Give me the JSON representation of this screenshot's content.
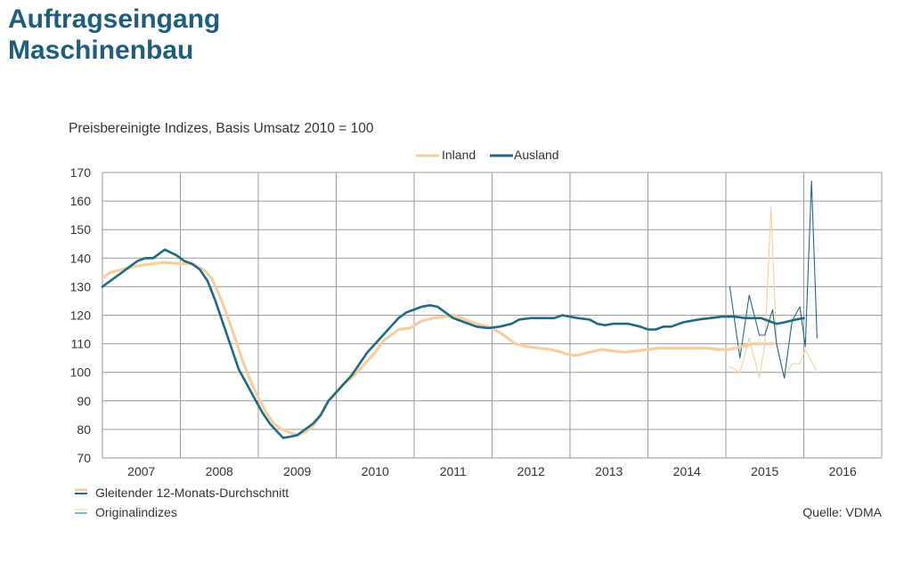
{
  "title": {
    "line1": "Auftragseingang",
    "line2": "Maschinenbau"
  },
  "colors": {
    "title": "#1f5e7a",
    "inland": "#f6cfa0",
    "ausland": "#1f6a82",
    "grid": "#9a9a9a"
  },
  "chart_data": {
    "type": "line",
    "subtitle": "Preisbereinigte Indizes, Basis Umsatz 2010 = 100",
    "x_unit": "year",
    "xlim": [
      2006.5,
      2016.5
    ],
    "ylim": [
      70,
      170
    ],
    "y_ticks": [
      70,
      80,
      90,
      100,
      110,
      120,
      130,
      140,
      150,
      160,
      170
    ],
    "x_tick_labels": [
      "2007",
      "2008",
      "2009",
      "2010",
      "2011",
      "2012",
      "2013",
      "2014",
      "2015",
      "2016"
    ],
    "x_tick_positions": [
      2007,
      2008,
      2009,
      2010,
      2011,
      2012,
      2013,
      2014,
      2015,
      2016
    ],
    "grid": true,
    "legend_placement": "top-center",
    "legend": [
      "Inland",
      "Ausland"
    ],
    "bottom_legend": [
      "Gleitender 12-Monats-Durchschnitt",
      "Originalindizes"
    ],
    "source": "Quelle: VDMA",
    "series": [
      {
        "name": "Inland",
        "kind": "moving-average",
        "color": "#f6cfa0",
        "points": [
          [
            2006.5,
            133
          ],
          [
            2006.6,
            135
          ],
          [
            2006.75,
            136
          ],
          [
            2006.9,
            137
          ],
          [
            2007.0,
            137.5
          ],
          [
            2007.15,
            138
          ],
          [
            2007.3,
            138.5
          ],
          [
            2007.5,
            138
          ],
          [
            2007.65,
            138
          ],
          [
            2007.8,
            136
          ],
          [
            2007.9,
            133
          ],
          [
            2008.0,
            127
          ],
          [
            2008.1,
            120
          ],
          [
            2008.2,
            112
          ],
          [
            2008.3,
            104
          ],
          [
            2008.4,
            97
          ],
          [
            2008.5,
            91
          ],
          [
            2008.6,
            86
          ],
          [
            2008.7,
            82
          ],
          [
            2008.8,
            80
          ],
          [
            2008.9,
            79
          ],
          [
            2009.0,
            78
          ],
          [
            2009.1,
            79
          ],
          [
            2009.2,
            81
          ],
          [
            2009.3,
            85
          ],
          [
            2009.4,
            90
          ],
          [
            2009.5,
            93
          ],
          [
            2009.6,
            96
          ],
          [
            2009.7,
            98
          ],
          [
            2009.8,
            101
          ],
          [
            2009.9,
            104
          ],
          [
            2010.0,
            107
          ],
          [
            2010.1,
            111
          ],
          [
            2010.2,
            113
          ],
          [
            2010.3,
            115
          ],
          [
            2010.45,
            115.5
          ],
          [
            2010.6,
            118
          ],
          [
            2010.75,
            119
          ],
          [
            2010.9,
            119.5
          ],
          [
            2011.0,
            120
          ],
          [
            2011.1,
            119
          ],
          [
            2011.2,
            118
          ],
          [
            2011.3,
            117
          ],
          [
            2011.45,
            116
          ],
          [
            2011.6,
            114
          ],
          [
            2011.7,
            112
          ],
          [
            2011.8,
            110
          ],
          [
            2011.95,
            109
          ],
          [
            2012.1,
            108.5
          ],
          [
            2012.25,
            108
          ],
          [
            2012.4,
            107
          ],
          [
            2012.5,
            106
          ],
          [
            2012.6,
            106
          ],
          [
            2012.75,
            107
          ],
          [
            2012.9,
            108
          ],
          [
            2013.05,
            107.5
          ],
          [
            2013.2,
            107
          ],
          [
            2013.35,
            107.5
          ],
          [
            2013.5,
            108
          ],
          [
            2013.65,
            108.5
          ],
          [
            2013.8,
            108.5
          ],
          [
            2013.95,
            108.5
          ],
          [
            2014.1,
            108.5
          ],
          [
            2014.25,
            108.5
          ],
          [
            2014.4,
            108
          ],
          [
            2014.55,
            108
          ],
          [
            2014.7,
            109
          ],
          [
            2014.85,
            110
          ],
          [
            2015.0,
            110
          ],
          [
            2015.1,
            110
          ]
        ]
      },
      {
        "name": "Inland",
        "kind": "original",
        "color": "#f6cfa0",
        "points": [
          [
            2014.55,
            102
          ],
          [
            2014.68,
            100
          ],
          [
            2014.8,
            112
          ],
          [
            2014.93,
            98
          ],
          [
            2015.0,
            110
          ],
          [
            2015.08,
            158
          ],
          [
            2015.15,
            110
          ],
          [
            2015.25,
            98
          ],
          [
            2015.35,
            103
          ],
          [
            2015.45,
            103
          ],
          [
            2015.52,
            108
          ],
          [
            2015.6,
            104
          ],
          [
            2015.67,
            100
          ]
        ]
      },
      {
        "name": "Ausland",
        "kind": "moving-average",
        "color": "#1f6a82",
        "points": [
          [
            2006.5,
            130
          ],
          [
            2006.6,
            132
          ],
          [
            2006.75,
            135
          ],
          [
            2006.85,
            137
          ],
          [
            2006.95,
            139
          ],
          [
            2007.05,
            140
          ],
          [
            2007.15,
            140
          ],
          [
            2007.25,
            142
          ],
          [
            2007.3,
            143
          ],
          [
            2007.45,
            141
          ],
          [
            2007.55,
            139
          ],
          [
            2007.65,
            138
          ],
          [
            2007.75,
            136
          ],
          [
            2007.85,
            132
          ],
          [
            2007.95,
            125
          ],
          [
            2008.05,
            117
          ],
          [
            2008.15,
            109
          ],
          [
            2008.25,
            101
          ],
          [
            2008.35,
            96
          ],
          [
            2008.45,
            91
          ],
          [
            2008.55,
            86
          ],
          [
            2008.65,
            82
          ],
          [
            2008.75,
            79
          ],
          [
            2008.82,
            77
          ],
          [
            2008.92,
            77.5
          ],
          [
            2009.0,
            78
          ],
          [
            2009.1,
            80
          ],
          [
            2009.2,
            82
          ],
          [
            2009.3,
            85
          ],
          [
            2009.4,
            90
          ],
          [
            2009.5,
            93
          ],
          [
            2009.6,
            96
          ],
          [
            2009.7,
            99
          ],
          [
            2009.8,
            103
          ],
          [
            2009.9,
            107
          ],
          [
            2010.0,
            110
          ],
          [
            2010.1,
            113
          ],
          [
            2010.2,
            116
          ],
          [
            2010.3,
            119
          ],
          [
            2010.4,
            121
          ],
          [
            2010.5,
            122
          ],
          [
            2010.6,
            123
          ],
          [
            2010.7,
            123.5
          ],
          [
            2010.8,
            123
          ],
          [
            2010.9,
            121
          ],
          [
            2011.0,
            119
          ],
          [
            2011.1,
            118
          ],
          [
            2011.2,
            117
          ],
          [
            2011.3,
            116
          ],
          [
            2011.45,
            115.5
          ],
          [
            2011.6,
            116
          ],
          [
            2011.75,
            117
          ],
          [
            2011.85,
            118.5
          ],
          [
            2012.0,
            119
          ],
          [
            2012.15,
            119
          ],
          [
            2012.3,
            119
          ],
          [
            2012.4,
            120
          ],
          [
            2012.5,
            119.5
          ],
          [
            2012.6,
            119
          ],
          [
            2012.75,
            118.5
          ],
          [
            2012.85,
            117
          ],
          [
            2012.95,
            116.5
          ],
          [
            2013.05,
            117
          ],
          [
            2013.15,
            117
          ],
          [
            2013.25,
            117
          ],
          [
            2013.4,
            116
          ],
          [
            2013.5,
            115
          ],
          [
            2013.6,
            115
          ],
          [
            2013.7,
            116
          ],
          [
            2013.8,
            116
          ],
          [
            2013.95,
            117.5
          ],
          [
            2014.05,
            118
          ],
          [
            2014.15,
            118.5
          ],
          [
            2014.3,
            119
          ],
          [
            2014.45,
            119.5
          ],
          [
            2014.6,
            119.5
          ],
          [
            2014.75,
            119
          ],
          [
            2014.85,
            119
          ],
          [
            2014.95,
            119
          ],
          [
            2015.05,
            118
          ],
          [
            2015.15,
            117
          ],
          [
            2015.25,
            117.5
          ],
          [
            2015.4,
            118.5
          ],
          [
            2015.5,
            119
          ]
        ]
      },
      {
        "name": "Ausland",
        "kind": "original",
        "color": "#1f6a82",
        "points": [
          [
            2014.55,
            130
          ],
          [
            2014.68,
            105
          ],
          [
            2014.8,
            127
          ],
          [
            2014.93,
            113
          ],
          [
            2015.0,
            113
          ],
          [
            2015.1,
            122
          ],
          [
            2015.15,
            110
          ],
          [
            2015.25,
            98
          ],
          [
            2015.35,
            118
          ],
          [
            2015.45,
            123
          ],
          [
            2015.52,
            109
          ],
          [
            2015.6,
            167
          ],
          [
            2015.67,
            112
          ]
        ]
      }
    ]
  }
}
